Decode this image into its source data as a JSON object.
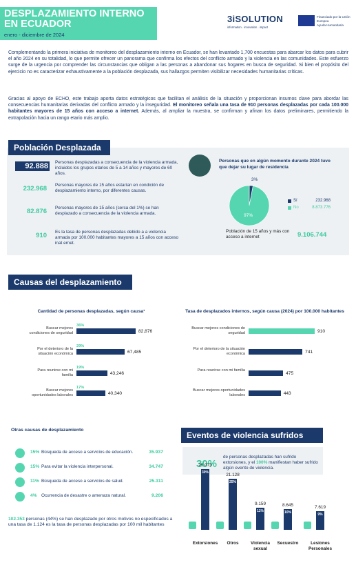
{
  "header": {
    "title": "DESPLAZAMIENTO INTERNO EN ECUADOR",
    "subtitle": "enero - diciembre de 2024",
    "logo": "3iSOLUTION",
    "logo_tagline": "information . innovation . impact",
    "funder": "Financiado por la Unión Europea",
    "funder_program": "Ayuda Humanitaria"
  },
  "intro": {
    "paragraph_1": "Complementando la primera iniciativa de monitoreo del desplazamiento interno en Ecuador, se han levantado 1,700 encuestas para abarcar los datos para cubrir el año 2024 en su totalidad, lo que permite ofrecer un panorama que confirma los efectos del conflicto armado y la violencia en las comunidades. Este esfuerzo surge de la urgencia por comprender las circunstancias que obligan a las personas a abandonar sus hogares en busca de seguridad. Si bien el propósito del ejercicio no es caracterizar exhaustivamente a la población desplazada, sus hallazgos permiten visibilizar necesidades humanitarias críticas.",
    "paragraph_2": {
      "text": "Gracias al apoyo de ECHO, este trabajo aporta datos estratégicos que facilitan el análisis de la situación y proporcionan insumos clave para abordar las consecuencias humanitarias derivadas del conflicto armado y la inseguridad. ",
      "highlight": "El monitoreo señala una tasa de 910 personas desplazadas por cada 100.000 habitantes mayores de 15 años con acceso a internet.",
      "closing": " Además, al ampliar la muestra, se confirman y afinan los datos preliminares, permitiendo la extrapolación hacia un rango etario más amplio."
    }
  },
  "poblacion": {
    "heading": "Población Desplazada",
    "stats": [
      {
        "value": "92.888",
        "text": "Personas desplazadas a consecuencia de la violencia armada, incluidos los grupos etarios de 5 a 14 años y mayores de 60 años."
      },
      {
        "value": "232.968",
        "text": "Personas mayores de 15 años estarían en condición de desplazamiento interno, por diferentes causas."
      },
      {
        "value": "82.876",
        "text": "Personas mayores de 15 años (cerca del 1%) se han desplazado a consecuencia de la violencia armada."
      },
      {
        "value": "910",
        "text": "Es la tasa de personas desplazadas debido a a violencia armada por 100.000 habitantes mayores a 15 años con acceso inat ernet."
      }
    ],
    "internet": {
      "label": "Población de 15 años y más con acceso a internet",
      "value": "9.106.744"
    }
  },
  "causas": {
    "heading": "Causas del desplazamiento"
  },
  "otras_causas": {
    "heading": "Otras causas de desplazamiento",
    "items": [
      {
        "share": "15%",
        "text": "Búsqueda de acceso a servicios de educación.",
        "value": "35.937"
      },
      {
        "share": "15%",
        "text": "Para evitar la violencia interpersonal.",
        "value": "34.747"
      },
      {
        "share": "11%",
        "text": "Búsqueda de acceso a servicios de salud.",
        "value": "25.311"
      },
      {
        "share": "4%",
        "text": "Ocurrencia de desastre o amenaza natural.",
        "value": "9.206"
      }
    ],
    "note": {
      "highlight": "102.353",
      "text": " personas (44%) se han desplazado por otros motivos no especificados a una tasa de 1.124 es la tasa de personas desplazadas por 100 mil habitantes"
    }
  },
  "eventos": {
    "heading": "Eventos de violencia sufridos",
    "highlight": "30%",
    "text": "de personas desplazadas han sufrido extorsiones, y el ",
    "highlight_2": "100%",
    "closing": " manifiestan haber sufrido algún evento de violencia."
  },
  "chart_data": [
    {
      "type": "pie",
      "title": "Personas que en algún momento durante 2024 tuvo que dejar su lugar de residencia",
      "categories": [
        "Sí",
        "No"
      ],
      "values": [
        3,
        97
      ],
      "value_labels": [
        "3%",
        "97%"
      ],
      "counts": [
        "232.968",
        "8.873.776"
      ],
      "colors": [
        "#1b3a6b",
        "#55d6b0"
      ]
    },
    {
      "type": "bar",
      "orientation": "horizontal",
      "title": "Cantidad de personas desplazadas, según causa¹",
      "categories": [
        "Buscar mejores condiciones de seguridad",
        "Por el deterioro de la situación económica",
        "Para reunirse con mi familia",
        "Buscar mejores oportunidades laborales"
      ],
      "values": [
        82876,
        67485,
        43246,
        40340
      ],
      "value_labels": [
        "82,876",
        "67,485",
        "43,246",
        "40,340"
      ],
      "share_labels": [
        "36%",
        "29%",
        "19%",
        "17%"
      ],
      "colors": [
        "#1b3a6b",
        "#1b3a6b",
        "#1b3a6b",
        "#1b3a6b"
      ]
    },
    {
      "type": "bar",
      "orientation": "horizontal",
      "title": "Tasa de desplazados internos, según causa (2024) por 100.000 habitantes",
      "categories": [
        "Buscar mejores condiciones de seguridad",
        "Por el deterioro de la situación económica",
        "Para reunirse con mi familia",
        "Buscar mejores oportunidades laborales"
      ],
      "values": [
        910,
        741,
        475,
        443
      ],
      "colors": [
        "#55d6b0",
        "#1b3a6b",
        "#1b3a6b",
        "#1b3a6b"
      ]
    },
    {
      "type": "bar",
      "orientation": "vertical",
      "categories": [
        "Extorsiones",
        "Otros",
        "Violencia sexual",
        "Secuestro",
        "Lesiones Personales"
      ],
      "values": [
        25073,
        21128,
        9159,
        8645,
        7619
      ],
      "value_labels": [
        "25.073",
        "21.128",
        "9.159",
        "8.645",
        "7.619"
      ],
      "share_labels": [
        "30%",
        "25%",
        "11%",
        "10%",
        "9%"
      ],
      "colors": [
        "#1b3a6b",
        "#1b3a6b",
        "#1b3a6b",
        "#1b3a6b",
        "#1b3a6b"
      ]
    }
  ]
}
